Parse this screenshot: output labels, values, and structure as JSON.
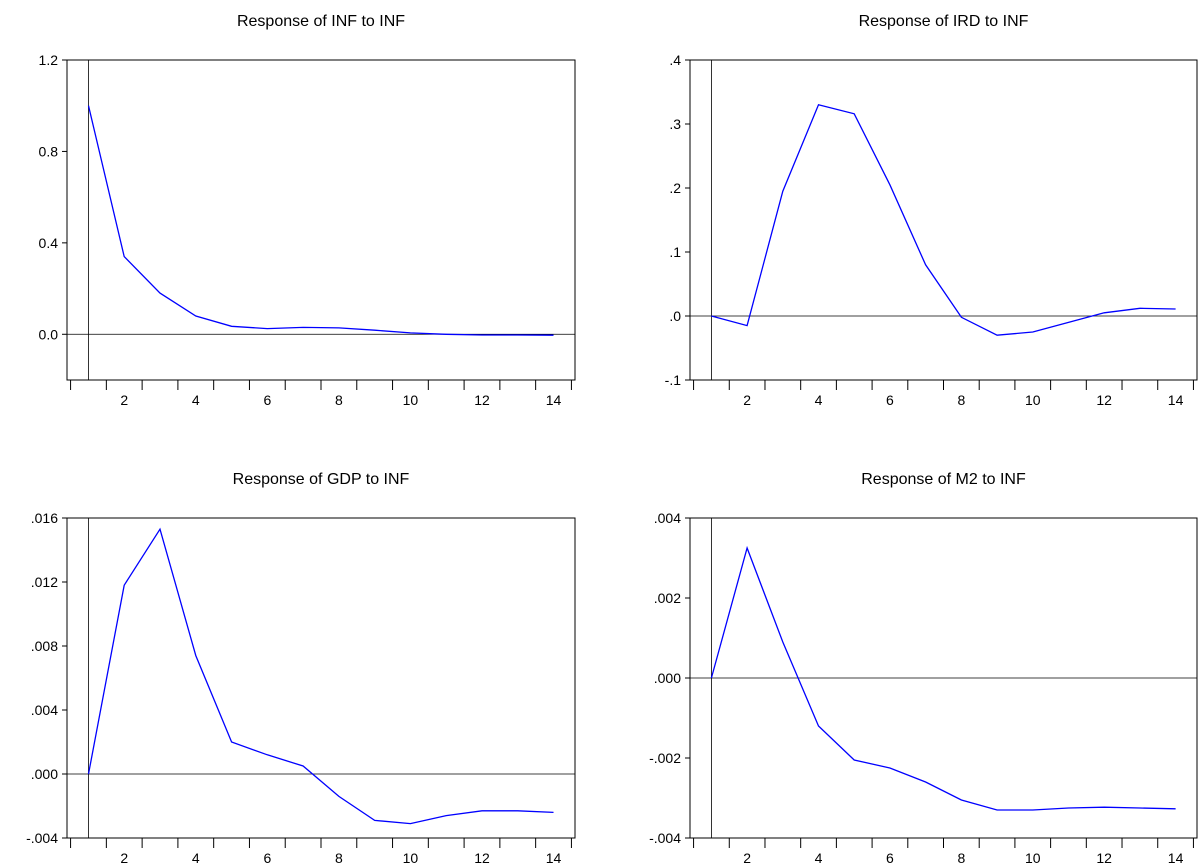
{
  "chart_data": [
    {
      "type": "line",
      "title": "Response of INF to INF",
      "xlabel": "",
      "ylabel": "",
      "x": [
        1,
        2,
        3,
        4,
        5,
        6,
        7,
        8,
        9,
        10,
        11,
        12,
        13,
        14
      ],
      "series": [
        {
          "values": [
            1.0,
            0.34,
            0.18,
            0.08,
            0.035,
            0.025,
            0.03,
            0.028,
            0.018,
            0.006,
            0.0,
            -0.003,
            -0.003,
            -0.004
          ]
        }
      ],
      "xlim": [
        0.4,
        14.6
      ],
      "ylim": [
        -0.2,
        1.2
      ],
      "yticks": [
        0.0,
        0.4,
        0.8,
        1.2
      ],
      "ytick_labels": [
        "0.0",
        "0.4",
        "0.8",
        "1.2"
      ],
      "xtick_labels": [
        "2",
        "4",
        "6",
        "8",
        "10",
        "12",
        "14"
      ],
      "zero_line": true,
      "grid": false,
      "line_color": "#0000ff"
    },
    {
      "type": "line",
      "title": "Response of IRD to INF",
      "xlabel": "",
      "ylabel": "",
      "x": [
        1,
        2,
        3,
        4,
        5,
        6,
        7,
        8,
        9,
        10,
        11,
        12,
        13,
        14
      ],
      "series": [
        {
          "values": [
            0.0,
            -0.015,
            0.195,
            0.33,
            0.316,
            0.205,
            0.08,
            -0.002,
            -0.03,
            -0.025,
            -0.01,
            0.005,
            0.012,
            0.011
          ]
        }
      ],
      "xlim": [
        0.4,
        14.6
      ],
      "ylim": [
        -0.1,
        0.4
      ],
      "yticks": [
        -0.1,
        0.0,
        0.1,
        0.2,
        0.3,
        0.4
      ],
      "ytick_labels": [
        "-.1",
        ".0",
        ".1",
        ".2",
        ".3",
        ".4"
      ],
      "xtick_labels": [
        "2",
        "4",
        "6",
        "8",
        "10",
        "12",
        "14"
      ],
      "zero_line": true,
      "grid": false,
      "line_color": "#0000ff"
    },
    {
      "type": "line",
      "title": "Response of GDP to INF",
      "xlabel": "",
      "ylabel": "",
      "x": [
        1,
        2,
        3,
        4,
        5,
        6,
        7,
        8,
        9,
        10,
        11,
        12,
        13,
        14
      ],
      "series": [
        {
          "values": [
            0.0,
            0.0118,
            0.0153,
            0.0074,
            0.002,
            0.0012,
            0.0005,
            -0.0014,
            -0.0029,
            -0.0031,
            -0.0026,
            -0.0023,
            -0.0023,
            -0.0024
          ]
        }
      ],
      "xlim": [
        0.4,
        14.6
      ],
      "ylim": [
        -0.004,
        0.016
      ],
      "yticks": [
        -0.004,
        0.0,
        0.004,
        0.008,
        0.012,
        0.016
      ],
      "ytick_labels": [
        "-.004",
        ".000",
        ".004",
        ".008",
        ".012",
        ".016"
      ],
      "xtick_labels": [
        "2",
        "4",
        "6",
        "8",
        "10",
        "12",
        "14"
      ],
      "zero_line": true,
      "grid": false,
      "line_color": "#0000ff"
    },
    {
      "type": "line",
      "title": "Response of M2 to INF",
      "xlabel": "",
      "ylabel": "",
      "x": [
        1,
        2,
        3,
        4,
        5,
        6,
        7,
        8,
        9,
        10,
        11,
        12,
        13,
        14
      ],
      "series": [
        {
          "values": [
            0.0,
            0.00325,
            0.0009,
            -0.0012,
            -0.00205,
            -0.00225,
            -0.0026,
            -0.00305,
            -0.0033,
            -0.0033,
            -0.00325,
            -0.00323,
            -0.00325,
            -0.00327
          ]
        }
      ],
      "xlim": [
        0.4,
        14.6
      ],
      "ylim": [
        -0.004,
        0.004
      ],
      "yticks": [
        -0.004,
        -0.002,
        0.0,
        0.002,
        0.004
      ],
      "ytick_labels": [
        "-.004",
        "-.002",
        ".000",
        ".002",
        ".004"
      ],
      "xtick_labels": [
        "2",
        "4",
        "6",
        "8",
        "10",
        "12",
        "14"
      ],
      "zero_line": true,
      "grid": false,
      "line_color": "#0000ff"
    }
  ]
}
